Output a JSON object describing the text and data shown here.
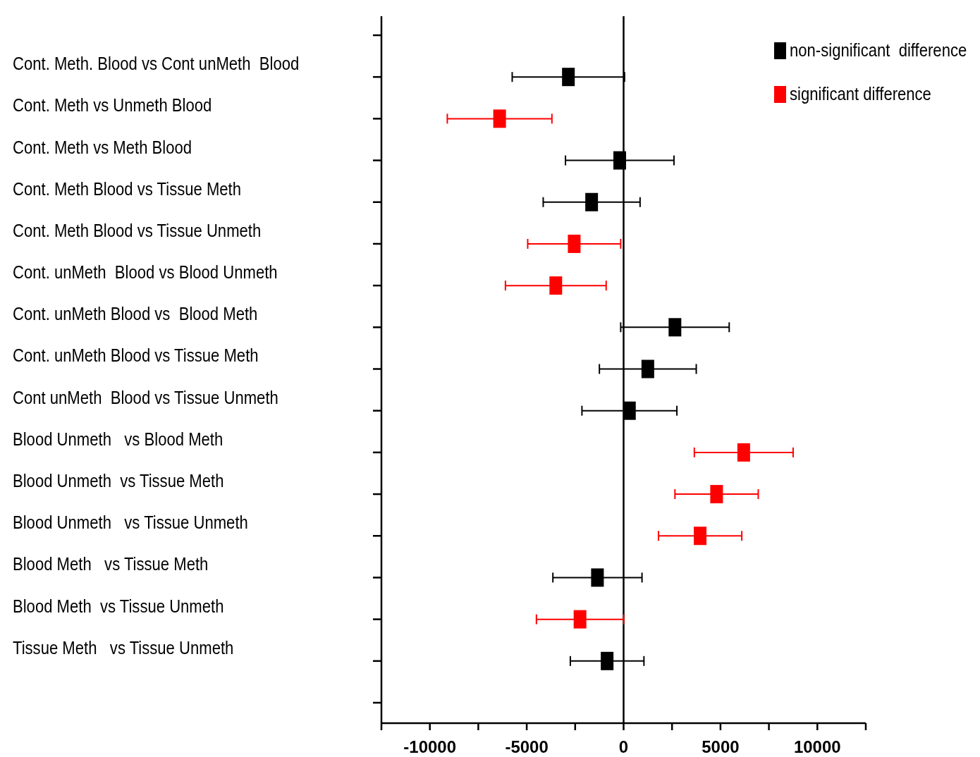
{
  "chart_data": {
    "type": "scatter",
    "orientation": "horizontal",
    "marker": "square",
    "legend": "top right",
    "grid": false,
    "categories": [
      null,
      "Cont. Meth. Blood vs Cont unMeth  Blood",
      "Cont. Meth vs Unmeth Blood",
      "Cont. Meth vs Meth Blood",
      "Cont. Meth Blood vs Tissue Meth",
      "Cont. Meth Blood vs Tissue Unmeth",
      "Cont. unMeth  Blood vs Blood Unmeth",
      "Cont. unMeth Blood vs  Blood Meth",
      "Cont. unMeth Blood vs Tissue Meth",
      "Cont unMeth  Blood vs Tissue Unmeth",
      "Blood Unmeth   vs Blood Meth",
      "Blood Unmeth  vs Tissue Meth",
      "Blood Unmeth   vs Tissue Unmeth",
      "Blood Meth   vs Tissue Meth",
      "Blood Meth  vs Tissue Unmeth",
      "Tissue Meth   vs Tissue Unmeth",
      null
    ],
    "xlim": [
      -12500,
      12500
    ],
    "xticks": [
      {
        "value": -12500,
        "label": null
      },
      -10000,
      {
        "value": -7500,
        "label": null
      },
      -5000,
      {
        "value": -2500,
        "label": null
      },
      0,
      {
        "value": 2500,
        "label": null
      },
      5000,
      {
        "value": 7500,
        "label": null
      },
      10000,
      {
        "value": 12500,
        "label": null
      }
    ],
    "ref_lines": [
      {
        "axis": "x",
        "value": 0,
        "color": "#000000"
      }
    ],
    "series": [
      {
        "name": "non-significant  difference",
        "color": "#000000",
        "values": [
          null,
          -2850,
          null,
          -200,
          -1650,
          null,
          null,
          2650,
          1250,
          300,
          null,
          null,
          null,
          -1350,
          null,
          -850,
          null
        ],
        "errors": [
          null,
          2900,
          null,
          2800,
          2500,
          null,
          null,
          2800,
          2500,
          2450,
          null,
          null,
          null,
          2300,
          null,
          1900,
          null
        ]
      },
      {
        "name": "significant difference",
        "color": "#ff0000",
        "values": [
          null,
          null,
          -6400,
          null,
          null,
          -2550,
          -3500,
          null,
          null,
          null,
          6200,
          4800,
          3950,
          null,
          -2250,
          null,
          null
        ],
        "errors": [
          null,
          null,
          2700,
          null,
          null,
          2400,
          2600,
          null,
          null,
          null,
          2550,
          2150,
          2150,
          null,
          2250,
          null,
          null
        ]
      }
    ]
  }
}
